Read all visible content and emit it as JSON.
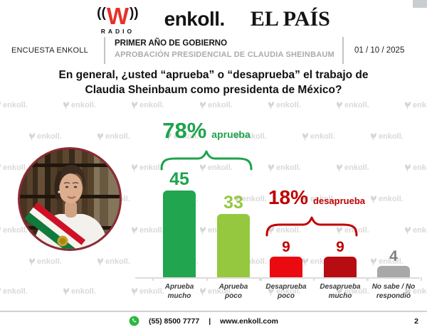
{
  "header": {
    "wradio": {
      "paren_left": "((",
      "letter": "W",
      "paren_right": "))",
      "caption": "RADIO"
    },
    "enkoll": "enkoll.",
    "elpais": "EL PAÍS"
  },
  "subheader": {
    "left": "ENCUESTA ENKOLL",
    "line1": "PRIMER AÑO DE GOBIERNO",
    "line2": "APROBACIÓN PRESIDENCIAL DE CLAUDIA SHEINBAUM",
    "date": "01 / 10 / 2025"
  },
  "question": {
    "line1": "En general, ¿usted “aprueba” o “desaprueba” el trabajo de",
    "line2": "Claudia Sheinbaum como presidenta de México?"
  },
  "chart_data": {
    "type": "bar",
    "title": "En general, ¿usted “aprueba” o “desaprueba” el trabajo de Claudia Sheinbaum como presidenta de México?",
    "categories": [
      "Aprueba mucho",
      "Aprueba poco",
      "Desaprueba poco",
      "Desaprueba mucho",
      "No sabe / No respondió"
    ],
    "category_lines": [
      [
        "Aprueba",
        "mucho"
      ],
      [
        "Aprueba",
        "poco"
      ],
      [
        "Desaprueba",
        "poco"
      ],
      [
        "Desaprueba",
        "mucho"
      ],
      [
        "No sabe / No",
        "respondió"
      ]
    ],
    "values": [
      45,
      33,
      9,
      9,
      4
    ],
    "bar_colors": [
      "#21A54E",
      "#95C83F",
      "#EB0A10",
      "#B70D12",
      "#A8A8A8"
    ],
    "value_colors": [
      "#1FA24C",
      "#95C83F",
      "#C00000",
      "#C00000",
      "#7F7F7F"
    ],
    "annotations": [
      {
        "pct": "78%",
        "label": "aprueba",
        "color": "#1FA24C",
        "covers": [
          0,
          1
        ]
      },
      {
        "pct": "18%",
        "label": "desaprueba",
        "color": "#C00000",
        "covers": [
          2,
          3
        ]
      }
    ],
    "xlabel": "",
    "ylabel": "",
    "ylim": [
      0,
      50
    ],
    "grid": false,
    "legend": "none"
  },
  "watermark": {
    "text": "enkoll."
  },
  "footer": {
    "phone": "(55) 8500 7777",
    "separator": "|",
    "website": "www.enkoll.com",
    "page": "2"
  }
}
